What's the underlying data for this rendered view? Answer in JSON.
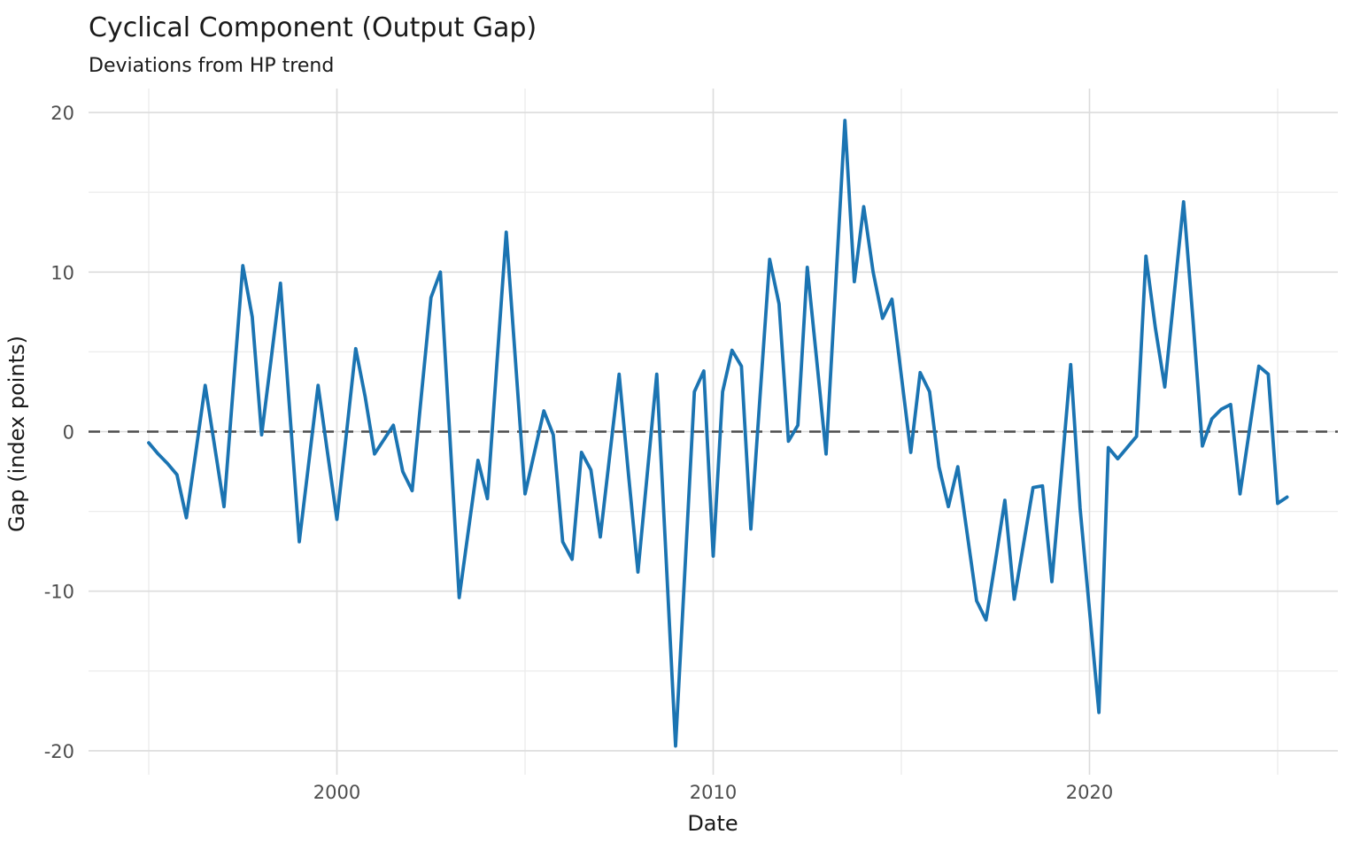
{
  "page": {
    "background": "#ffffff"
  },
  "chart": {
    "colors": {
      "line": "#1b74b2",
      "zero_line": "#4d4d4d",
      "grid_major": "#dcdcdc",
      "grid_minor": "#ececec",
      "tick_label": "#4d4d4d",
      "text": "#1a1a1a"
    }
  },
  "chart_data": {
    "type": "line",
    "title": "Cyclical Component (Output Gap)",
    "subtitle": "Deviations from HP trend",
    "xlabel": "Date",
    "ylabel": "Gap (index points)",
    "frequency": "quarterly",
    "x_start": 1995.0,
    "x_step": 0.25,
    "x_tick_values": [
      2000,
      2010,
      2020
    ],
    "x_tick_labels": [
      "2000",
      "2010",
      "2020"
    ],
    "x_minor_ticks": [
      1995,
      2005,
      2015,
      2025
    ],
    "y_tick_values": [
      20,
      10,
      0,
      -10,
      -20
    ],
    "y_tick_labels": [
      "20",
      "10",
      "0",
      "-10",
      "-20"
    ],
    "y_minor_ticks": [
      15,
      5,
      -5,
      -15
    ],
    "xlim": [
      1993.4,
      2026.6
    ],
    "ylim": [
      -21.5,
      21.5
    ],
    "grid": true,
    "legend": false,
    "zero_reference_line": 0,
    "series": [
      {
        "name": "Output gap (deviation from HP trend)",
        "values": [
          -0.7,
          -1.4,
          -2.0,
          -2.7,
          -5.4,
          -1.3,
          2.9,
          -0.9,
          -4.7,
          2.9,
          10.4,
          7.2,
          -0.2,
          4.5,
          9.3,
          1.2,
          -6.9,
          -2.0,
          2.9,
          -1.3,
          -5.5,
          -0.2,
          5.2,
          2.2,
          -1.4,
          -0.5,
          0.4,
          -2.5,
          -3.7,
          2.4,
          8.4,
          10.0,
          -0.2,
          -10.4,
          -6.1,
          -1.8,
          -4.2,
          4.2,
          12.5,
          4.3,
          -3.9,
          -1.3,
          1.3,
          -0.2,
          -6.9,
          -8.0,
          -1.3,
          -2.4,
          -6.6,
          -1.5,
          3.6,
          -2.7,
          -8.8,
          -2.6,
          3.6,
          -8.0,
          -19.7,
          -8.6,
          2.5,
          3.8,
          -7.8,
          2.5,
          5.1,
          4.1,
          -6.1,
          2.4,
          10.8,
          8.0,
          -0.6,
          0.4,
          10.3,
          4.5,
          -1.4,
          9.0,
          19.5,
          9.4,
          14.1,
          10.0,
          7.1,
          8.3,
          3.5,
          -1.3,
          3.7,
          2.5,
          -2.2,
          -4.7,
          -2.2,
          -6.4,
          -10.6,
          -11.8,
          -8.1,
          -4.3,
          -10.5,
          -7.0,
          -3.5,
          -3.4,
          -9.4,
          -2.7,
          4.2,
          -4.8,
          -11.2,
          -17.6,
          -1.0,
          -1.7,
          -1.0,
          -0.3,
          11.0,
          6.5,
          2.8,
          8.6,
          14.4,
          7.0,
          -0.9,
          0.8,
          1.4,
          1.7,
          -3.9,
          0.1,
          4.1,
          3.6,
          -4.5,
          -4.1
        ]
      }
    ]
  }
}
